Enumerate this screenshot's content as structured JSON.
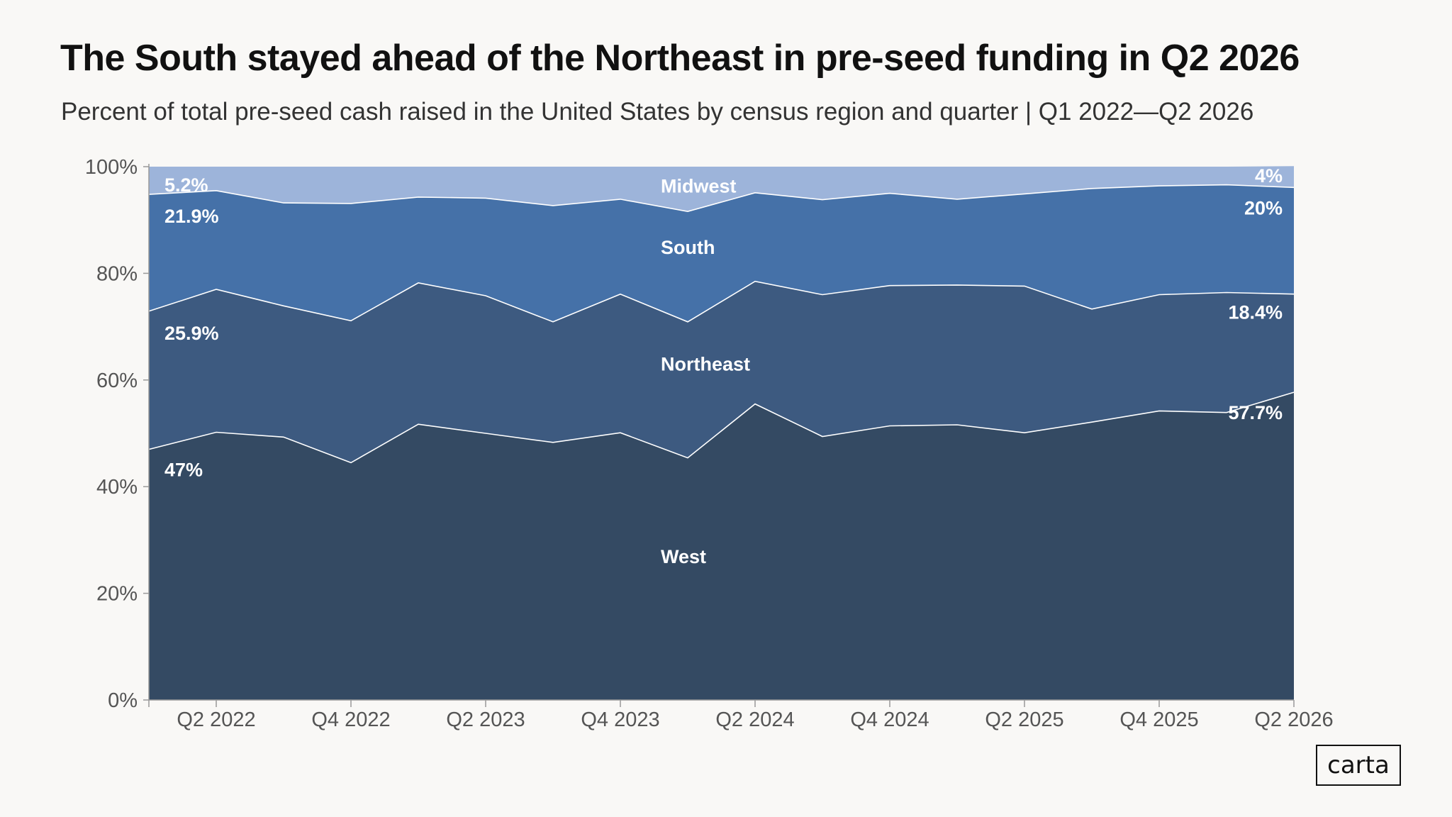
{
  "header": {
    "title": "The South stayed ahead of the Northeast in pre-seed funding in Q2 2026",
    "subtitle": "Percent of total pre-seed cash raised in the United States by census region and quarter | Q1 2022—Q2 2026"
  },
  "logo": {
    "text": "carta"
  },
  "chart_data": {
    "type": "area",
    "stacked": true,
    "x": [
      "Q1 2022",
      "Q2 2022",
      "Q3 2022",
      "Q4 2022",
      "Q1 2023",
      "Q2 2023",
      "Q3 2023",
      "Q4 2023",
      "Q1 2024",
      "Q2 2024",
      "Q3 2024",
      "Q4 2024",
      "Q1 2025",
      "Q2 2025",
      "Q3 2025",
      "Q4 2025",
      "Q1 2026",
      "Q2 2026"
    ],
    "x_tick_labels": [
      "Q2 2022",
      "Q4 2022",
      "Q2 2023",
      "Q4 2023",
      "Q2 2024",
      "Q4 2024",
      "Q2 2025",
      "Q4 2025",
      "Q2 2026"
    ],
    "y_ticks": [
      "0%",
      "20%",
      "40%",
      "60%",
      "80%",
      "100%"
    ],
    "ylim": [
      0,
      100
    ],
    "series": [
      {
        "name": "West",
        "color": "#344a63",
        "values": [
          47.0,
          50.2,
          49.3,
          44.5,
          51.7,
          50.0,
          48.3,
          50.1,
          45.4,
          55.5,
          49.4,
          51.4,
          51.6,
          50.1,
          52.1,
          54.2,
          53.9,
          57.7
        ]
      },
      {
        "name": "Northeast",
        "color": "#3d5a80",
        "values": [
          25.9,
          26.8,
          24.6,
          26.6,
          26.5,
          25.8,
          22.6,
          26.0,
          25.5,
          23.0,
          26.6,
          26.3,
          26.2,
          27.5,
          21.2,
          21.8,
          22.5,
          18.4
        ]
      },
      {
        "name": "South",
        "color": "#4571a8",
        "values": [
          21.9,
          18.5,
          19.3,
          22.0,
          16.1,
          18.3,
          21.8,
          17.8,
          20.7,
          16.6,
          17.8,
          17.3,
          16.1,
          17.3,
          22.6,
          20.4,
          20.2,
          20.0
        ]
      },
      {
        "name": "Midwest",
        "color": "#9db4da",
        "values": [
          5.2,
          4.5,
          6.8,
          6.9,
          5.7,
          5.9,
          7.3,
          6.1,
          8.4,
          4.9,
          6.2,
          5.0,
          6.1,
          5.1,
          4.1,
          3.6,
          3.4,
          4.0
        ]
      }
    ],
    "series_labels": {
      "Midwest": "Midwest",
      "South": "South",
      "Northeast": "Northeast",
      "West": "West"
    },
    "annotations": {
      "start": {
        "Midwest": "5.2%",
        "South": "21.9%",
        "Northeast": "25.9%",
        "West": "47%"
      },
      "end": {
        "Midwest": "4%",
        "South": "20%",
        "Northeast": "18.4%",
        "West": "57.7%"
      }
    },
    "grid": false,
    "legend": "inline"
  }
}
